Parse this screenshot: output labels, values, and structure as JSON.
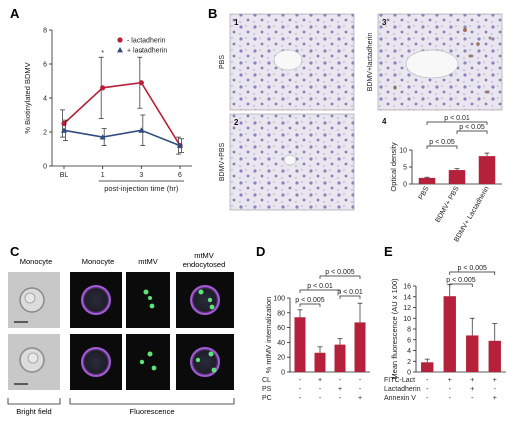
{
  "panels": {
    "A": {
      "letter": "A"
    },
    "B": {
      "letter": "B",
      "micro_labels": [
        "1",
        "2",
        "3",
        "4"
      ],
      "side_labels": [
        "PBS",
        "BDMV+PBS",
        "BDMV+lactadherin"
      ]
    },
    "C": {
      "letter": "C",
      "col_labels": [
        "Monocyte",
        "Monocyte",
        "mtMV",
        "mtMV endocytosed"
      ],
      "bottom_left": "Bright field",
      "bottom_right": "Fluorescence"
    },
    "D": {
      "letter": "D"
    },
    "E": {
      "letter": "E"
    }
  },
  "chart_data": [
    {
      "id": "A",
      "type": "line",
      "x": [
        "BL",
        "1",
        "3",
        "6"
      ],
      "xlabel": "post-injection time (hr)",
      "ylabel": "% Biotinylated BDMV",
      "ylim": [
        0,
        8
      ],
      "yticks": [
        0,
        2,
        4,
        6,
        8
      ],
      "legend": "top-right",
      "series": [
        {
          "name": "- lactadherin",
          "color": "#b5213a",
          "marker": "circle",
          "values": [
            2.5,
            4.6,
            4.9,
            1.2
          ],
          "err": [
            0.8,
            1.8,
            1.5,
            0.5
          ]
        },
        {
          "name": "+ lactadherin",
          "color": "#2f4e7e",
          "marker": "triangle",
          "values": [
            2.1,
            1.7,
            2.1,
            1.2
          ],
          "err": [
            0.6,
            0.5,
            0.9,
            0.4
          ]
        }
      ],
      "annotations": [
        {
          "x": "1",
          "text": "*"
        },
        {
          "x": "3",
          "text": "*"
        }
      ]
    },
    {
      "id": "B4",
      "type": "bar",
      "categories": [
        "PBS",
        "BDMV+ PBS",
        "BDMV+ Lactadherin"
      ],
      "values": [
        1.8,
        4.1,
        8.2
      ],
      "err": [
        0.2,
        0.4,
        0.9
      ],
      "ylabel": "Optical density",
      "ylim": [
        0,
        10
      ],
      "yticks": [
        0,
        5,
        10
      ],
      "color": "#b5213a",
      "significance": [
        {
          "from": 0,
          "to": 1,
          "text": "p < 0.05"
        },
        {
          "from": 1,
          "to": 2,
          "text": "p < 0.05"
        },
        {
          "from": 0,
          "to": 2,
          "text": "p < 0.01"
        }
      ]
    },
    {
      "id": "D",
      "type": "bar",
      "categories": [
        "1",
        "2",
        "3",
        "4"
      ],
      "values": [
        74,
        26,
        37,
        67
      ],
      "err": [
        10,
        8,
        8,
        26
      ],
      "ylabel": "% mtMV internalization",
      "ylim": [
        0,
        100
      ],
      "yticks": [
        0,
        20,
        40,
        60,
        80,
        100
      ],
      "color": "#b5213a",
      "conditions": [
        {
          "name": "CL",
          "marks": [
            "-",
            "+",
            "-",
            "-"
          ]
        },
        {
          "name": "PS",
          "marks": [
            "-",
            "-",
            "+",
            "-"
          ]
        },
        {
          "name": "PC",
          "marks": [
            "-",
            "-",
            "-",
            "+"
          ]
        }
      ],
      "significance": [
        {
          "from": 0,
          "to": 1,
          "text": "p < 0.005"
        },
        {
          "from": 0,
          "to": 2,
          "text": "p < 0.01"
        },
        {
          "from": 2,
          "to": 3,
          "text": "p < 0.01"
        },
        {
          "from": 1,
          "to": 3,
          "text": "p < 0.005"
        }
      ]
    },
    {
      "id": "E",
      "type": "bar",
      "categories": [
        "1",
        "2",
        "3",
        "4"
      ],
      "values": [
        1.8,
        14.1,
        6.8,
        5.8
      ],
      "err": [
        0.6,
        2.2,
        3.2,
        3.2
      ],
      "ylabel": "Mean fluorescence (AU x 100)",
      "ylim": [
        0,
        16
      ],
      "yticks": [
        0,
        2,
        4,
        6,
        8,
        10,
        12,
        14,
        16
      ],
      "color": "#b5213a",
      "conditions": [
        {
          "name": "FITC-Lact",
          "marks": [
            "-",
            "+",
            "+",
            "+"
          ]
        },
        {
          "name": "Lactadherin",
          "marks": [
            "-",
            "-",
            "+",
            "-"
          ]
        },
        {
          "name": "Annexin V",
          "marks": [
            "-",
            "-",
            "-",
            "+"
          ]
        }
      ],
      "significance": [
        {
          "from": 1,
          "to": 2,
          "text": "p < 0.005"
        },
        {
          "from": 1,
          "to": 3,
          "text": "p < 0.005"
        }
      ]
    }
  ]
}
